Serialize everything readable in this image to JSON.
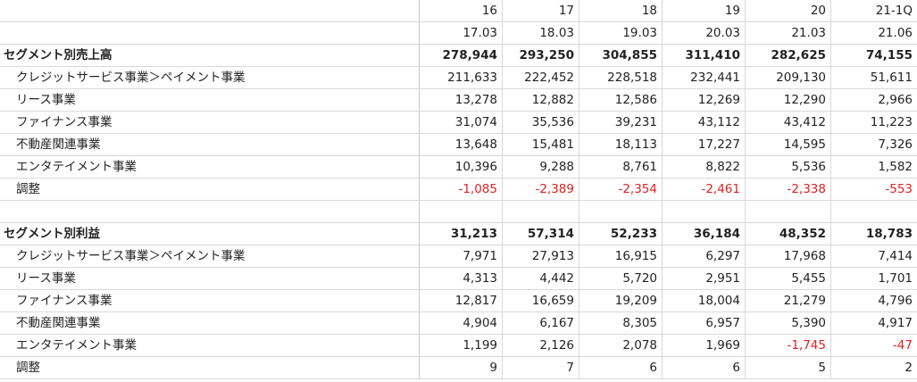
{
  "header": {
    "years": [
      "16",
      "17",
      "18",
      "19",
      "20",
      "21-1Q"
    ],
    "periods": [
      "17.03",
      "18.03",
      "19.03",
      "20.03",
      "21.03",
      "21.06"
    ]
  },
  "sales": {
    "title": "セグメント別売上高",
    "total": [
      "278,944",
      "293,250",
      "304,855",
      "311,410",
      "282,625",
      "74,155"
    ],
    "rows": [
      {
        "label": "クレジットサービス事業＞ペイメント事業",
        "values": [
          "211,633",
          "222,452",
          "228,518",
          "232,441",
          "209,130",
          "51,611"
        ]
      },
      {
        "label": "リース事業",
        "values": [
          "13,278",
          "12,882",
          "12,586",
          "12,269",
          "12,290",
          "2,966"
        ]
      },
      {
        "label": "ファイナンス事業",
        "values": [
          "31,074",
          "35,536",
          "39,231",
          "43,112",
          "43,412",
          "11,223"
        ]
      },
      {
        "label": "不動産関連事業",
        "values": [
          "13,648",
          "15,481",
          "18,113",
          "17,227",
          "14,595",
          "7,326"
        ]
      },
      {
        "label": "エンタテイメント事業",
        "values": [
          "10,396",
          "9,288",
          "8,761",
          "8,822",
          "5,536",
          "1,582"
        ]
      },
      {
        "label": "調整",
        "values": [
          "-1,085",
          "-2,389",
          "-2,354",
          "-2,461",
          "-2,338",
          "-553"
        ]
      }
    ]
  },
  "profit": {
    "title": "セグメント別利益",
    "total": [
      "31,213",
      "57,314",
      "52,233",
      "36,184",
      "48,352",
      "18,783"
    ],
    "rows": [
      {
        "label": "クレジットサービス事業＞ペイメント事業",
        "values": [
          "7,971",
          "27,913",
          "16,915",
          "6,297",
          "17,968",
          "7,414"
        ]
      },
      {
        "label": "リース事業",
        "values": [
          "4,313",
          "4,442",
          "5,720",
          "2,951",
          "5,455",
          "1,701"
        ]
      },
      {
        "label": "ファイナンス事業",
        "values": [
          "12,817",
          "16,659",
          "19,209",
          "18,004",
          "21,279",
          "4,796"
        ]
      },
      {
        "label": "不動産関連事業",
        "values": [
          "4,904",
          "6,167",
          "8,305",
          "6,957",
          "5,390",
          "4,917"
        ]
      },
      {
        "label": "エンタテイメント事業",
        "values": [
          "1,199",
          "2,126",
          "2,078",
          "1,969",
          "-1,745",
          "-47"
        ]
      },
      {
        "label": "調整",
        "values": [
          "9",
          "7",
          "6",
          "6",
          "5",
          "2"
        ]
      }
    ]
  },
  "colors": {
    "negative": "#e02020",
    "grid": "#d9d9d9",
    "text": "#222222"
  }
}
